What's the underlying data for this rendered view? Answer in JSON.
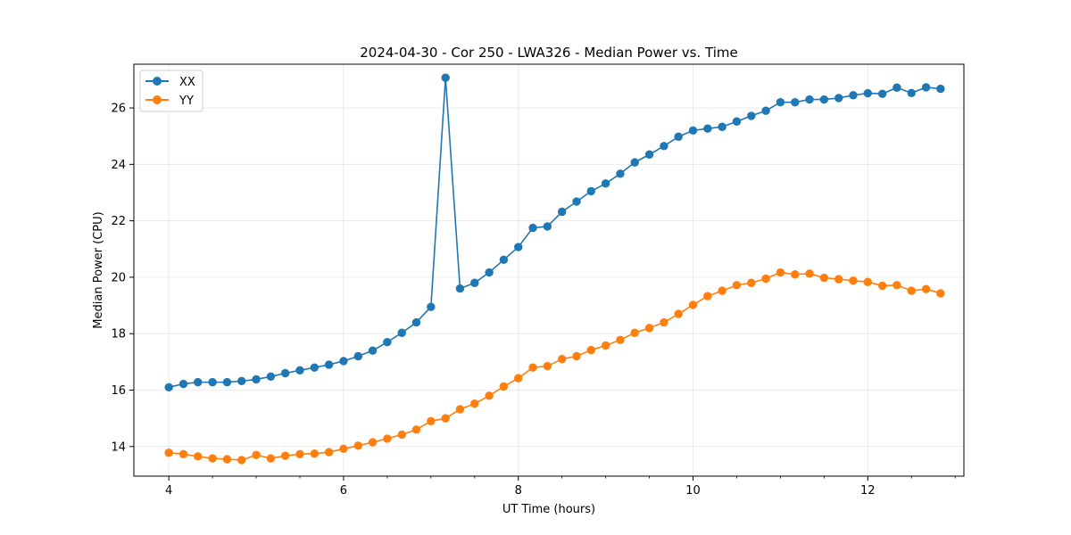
{
  "chart_data": {
    "type": "line",
    "title": "2024-04-30 - Cor 250 - LWA326 - Median Power vs. Time",
    "xlabel": "UT Time (hours)",
    "ylabel": "Median Power (CPU)",
    "xlim": [
      3.6,
      13.1
    ],
    "ylim": [
      12.95,
      27.55
    ],
    "xticks": [
      4,
      6,
      8,
      10,
      12
    ],
    "xticklabels": [
      "4",
      "6",
      "8",
      "10",
      "12"
    ],
    "yticks": [
      14,
      16,
      18,
      20,
      22,
      24,
      26
    ],
    "yticklabels": [
      "14",
      "16",
      "18",
      "20",
      "22",
      "24",
      "26"
    ],
    "grid": true,
    "legend": "top-left",
    "x": [
      4.0,
      4.167,
      4.333,
      4.5,
      4.667,
      4.833,
      5.0,
      5.167,
      5.333,
      5.5,
      5.667,
      5.833,
      6.0,
      6.167,
      6.333,
      6.5,
      6.667,
      6.833,
      7.0,
      7.167,
      7.333,
      7.5,
      7.667,
      7.833,
      8.0,
      8.167,
      8.333,
      8.5,
      8.667,
      8.833,
      9.0,
      9.167,
      9.333,
      9.5,
      9.667,
      9.833,
      10.0,
      10.167,
      10.333,
      10.5,
      10.667,
      10.833,
      11.0,
      11.167,
      11.333,
      11.5,
      11.667,
      11.833,
      12.0,
      12.167,
      12.333,
      12.5,
      12.667,
      12.833
    ],
    "series": [
      {
        "name": "XX",
        "color": "#1f77b4",
        "values": [
          16.1,
          16.22,
          16.28,
          16.28,
          16.28,
          16.32,
          16.38,
          16.48,
          16.6,
          16.7,
          16.8,
          16.9,
          17.03,
          17.2,
          17.4,
          17.7,
          18.03,
          18.4,
          18.95,
          27.07,
          19.6,
          19.8,
          20.17,
          20.62,
          21.07,
          21.75,
          21.8,
          22.32,
          22.68,
          23.05,
          23.32,
          23.67,
          24.07,
          24.35,
          24.65,
          24.98,
          25.2,
          25.27,
          25.33,
          25.52,
          25.72,
          25.9,
          26.2,
          26.2,
          26.3,
          26.3,
          26.35,
          26.45,
          26.52,
          26.5,
          26.72,
          26.53,
          26.73,
          26.68
        ]
      },
      {
        "name": "YY",
        "color": "#ff7f0e",
        "values": [
          13.78,
          13.73,
          13.65,
          13.58,
          13.55,
          13.52,
          13.7,
          13.58,
          13.67,
          13.73,
          13.75,
          13.8,
          13.92,
          14.03,
          14.15,
          14.28,
          14.42,
          14.6,
          14.9,
          15.0,
          15.32,
          15.52,
          15.8,
          16.13,
          16.42,
          16.8,
          16.85,
          17.1,
          17.2,
          17.42,
          17.58,
          17.78,
          18.03,
          18.2,
          18.4,
          18.7,
          19.02,
          19.33,
          19.52,
          19.72,
          19.8,
          19.95,
          20.17,
          20.1,
          20.13,
          19.98,
          19.93,
          19.88,
          19.83,
          19.7,
          19.72,
          19.52,
          19.58,
          19.43
        ]
      }
    ]
  }
}
